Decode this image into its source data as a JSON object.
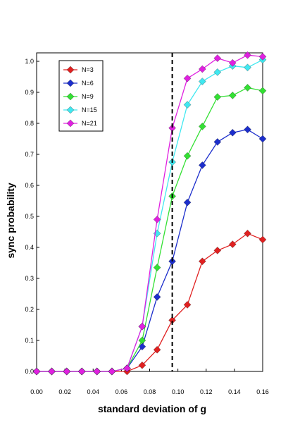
{
  "chart_data": {
    "type": "line",
    "title": "",
    "xlabel": "standard deviation of g",
    "ylabel": "sync probability",
    "xlim": [
      0.0,
      0.16
    ],
    "ylim": [
      0.0,
      1.03
    ],
    "xticks": [
      "0.00",
      "0.02",
      "0.04",
      "0.06",
      "0.08",
      "0.10",
      "0.12",
      "0.14",
      "0.16"
    ],
    "yticks": [
      "0.0",
      "0.1",
      "0.2",
      "0.3",
      "0.4",
      "0.5",
      "0.6",
      "0.7",
      "0.8",
      "0.9",
      "1.0"
    ],
    "legend_position": "top-left",
    "marker": "diamond",
    "vline": {
      "x": 0.096,
      "style": "dashed",
      "color": "#000000"
    },
    "x": [
      0.0,
      0.0107,
      0.0213,
      0.032,
      0.0427,
      0.0533,
      0.064,
      0.0747,
      0.0853,
      0.096,
      0.1067,
      0.1173,
      0.128,
      0.1387,
      0.1493,
      0.16
    ],
    "series": [
      {
        "name": "N=3",
        "color": "#e02020",
        "values": [
          0.0,
          0.0,
          0.0,
          0.0,
          0.0,
          0.0,
          0.0,
          0.02,
          0.07,
          0.165,
          0.215,
          0.355,
          0.39,
          0.41,
          0.445,
          0.425
        ]
      },
      {
        "name": "N=6",
        "color": "#1c2ecc",
        "values": [
          0.0,
          0.0,
          0.0,
          0.0,
          0.0,
          0.0,
          0.01,
          0.08,
          0.24,
          0.355,
          0.545,
          0.665,
          0.74,
          0.77,
          0.78,
          0.75
        ]
      },
      {
        "name": "N=9",
        "color": "#33e033",
        "values": [
          0.0,
          0.0,
          0.0,
          0.0,
          0.0,
          0.0,
          0.01,
          0.1,
          0.335,
          0.565,
          0.695,
          0.79,
          0.885,
          0.89,
          0.915,
          0.905
        ]
      },
      {
        "name": "N=15",
        "color": "#40e8f0",
        "values": [
          0.0,
          0.0,
          0.0,
          0.0,
          0.0,
          0.0,
          0.01,
          0.145,
          0.445,
          0.675,
          0.86,
          0.935,
          0.965,
          0.985,
          0.98,
          1.005
        ]
      },
      {
        "name": "N=21",
        "color": "#e020e0",
        "values": [
          0.0,
          0.0,
          0.0,
          0.0,
          0.0,
          0.0,
          0.01,
          0.145,
          0.49,
          0.785,
          0.945,
          0.975,
          1.01,
          0.995,
          1.02,
          1.015
        ]
      }
    ]
  }
}
